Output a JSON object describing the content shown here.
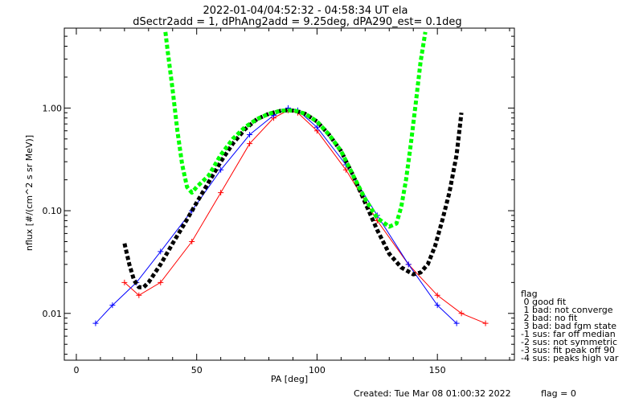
{
  "chart_data": {
    "type": "scatter",
    "title_lines": [
      "2022-01-04/04:52:32 - 04:58:34 UT ela",
      "dSectr2add = 1, dPhAng2add = 9.25deg, dPA290_est=   0.1deg"
    ],
    "xlabel": "PA [deg]",
    "ylabel": "nflux [#/(cm^2 s sr MeV)]",
    "xlim": [
      -5,
      182
    ],
    "ylim": [
      0.0035,
      6.0
    ],
    "yscale": "log",
    "xticks": [
      0,
      50,
      100,
      150
    ],
    "xtick_labels": [
      "0",
      "50",
      "100",
      "150"
    ],
    "yticks": [
      0.01,
      0.1,
      1.0
    ],
    "ytick_labels": [
      "0.01",
      "0.10",
      "1.00"
    ],
    "grid": false,
    "series": [
      {
        "color": "#ff0000",
        "style": "line+cross",
        "x": [
          20,
          26,
          35,
          48,
          60,
          72,
          82,
          88,
          92,
          100,
          112,
          125,
          138,
          150,
          160,
          170
        ],
        "values": [
          0.02,
          0.015,
          0.02,
          0.05,
          0.15,
          0.45,
          0.8,
          0.95,
          0.9,
          0.6,
          0.25,
          0.08,
          0.03,
          0.015,
          0.01,
          0.008
        ]
      },
      {
        "color": "#0000ff",
        "style": "line+cross",
        "x": [
          8,
          15,
          25,
          35,
          48,
          60,
          72,
          82,
          88,
          92,
          100,
          112,
          125,
          138,
          150,
          158
        ],
        "values": [
          0.008,
          0.012,
          0.02,
          0.04,
          0.1,
          0.25,
          0.55,
          0.85,
          1.0,
          0.95,
          0.65,
          0.28,
          0.09,
          0.03,
          0.012,
          0.008
        ]
      },
      {
        "color": "#000000",
        "style": "thick-dashed",
        "x": [
          20,
          22,
          24,
          26,
          28,
          30,
          35,
          40,
          45,
          50,
          55,
          60,
          65,
          70,
          75,
          80,
          85,
          88,
          91,
          95,
          100,
          105,
          110,
          115,
          120,
          125,
          130,
          135,
          140,
          143,
          146,
          149,
          152,
          155,
          158,
          160
        ],
        "values": [
          0.048,
          0.03,
          0.021,
          0.018,
          0.018,
          0.02,
          0.03,
          0.048,
          0.075,
          0.12,
          0.19,
          0.3,
          0.45,
          0.62,
          0.78,
          0.88,
          0.94,
          0.95,
          0.94,
          0.88,
          0.74,
          0.55,
          0.38,
          0.22,
          0.12,
          0.065,
          0.038,
          0.028,
          0.024,
          0.025,
          0.03,
          0.045,
          0.08,
          0.15,
          0.35,
          0.9
        ]
      },
      {
        "color": "#00ff00",
        "style": "thick-dashed",
        "x": [
          37,
          38,
          40,
          42,
          44,
          46,
          48,
          50,
          55,
          60,
          65,
          70,
          75,
          80,
          85,
          88,
          91,
          95,
          100,
          105,
          110,
          115,
          120,
          125,
          130,
          133,
          135,
          137,
          139,
          141,
          143,
          145
        ],
        "values": [
          5.5,
          3.5,
          1.5,
          0.6,
          0.28,
          0.17,
          0.15,
          0.17,
          0.22,
          0.35,
          0.5,
          0.65,
          0.78,
          0.88,
          0.94,
          0.95,
          0.94,
          0.88,
          0.74,
          0.55,
          0.38,
          0.22,
          0.13,
          0.085,
          0.07,
          0.075,
          0.11,
          0.2,
          0.45,
          1.1,
          2.8,
          5.5
        ]
      }
    ],
    "legend": {
      "placement": "right",
      "entries": [
        "flag",
        " 0 good fit",
        " 1 bad: not converge",
        " 2 bad: no fit",
        " 3 bad: bad fgm state",
        "-1 sus: far off median",
        "-2 sus: not symmetric",
        "-3 sus: fit peak off 90",
        "-4 sus: peaks high var"
      ]
    }
  },
  "footer": {
    "created": "Created: Tue Mar 08 01:00:32 2022",
    "flag": "flag = 0"
  }
}
